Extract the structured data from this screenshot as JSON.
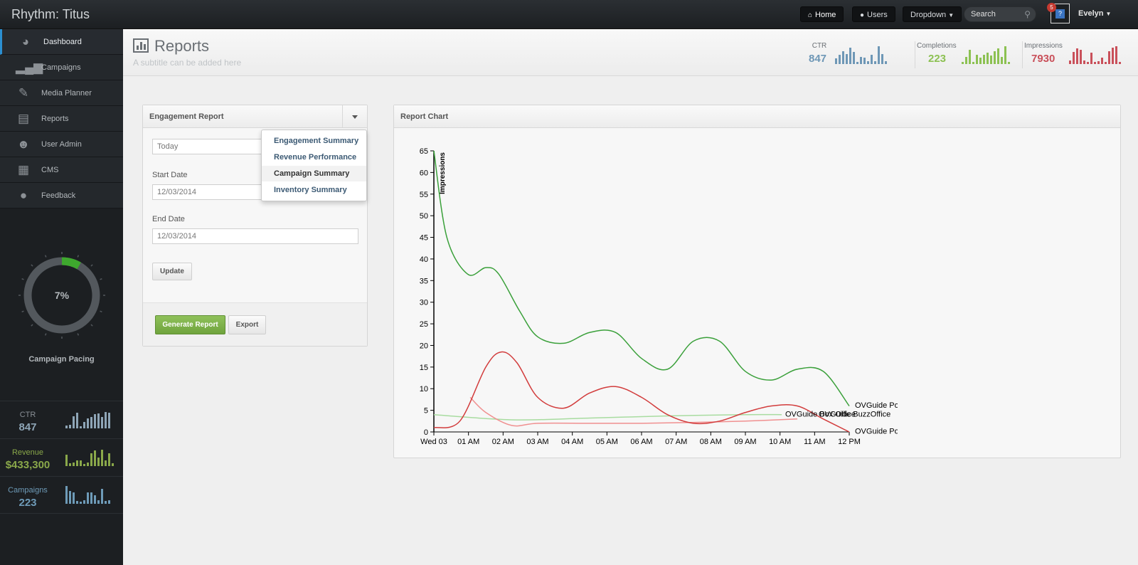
{
  "app": {
    "title": "Rhythm: Titus"
  },
  "topnav": {
    "home": "Home",
    "users": "Users",
    "dropdown": "Dropdown",
    "search_placeholder": "Search",
    "notifications": "5",
    "user": "Evelyn"
  },
  "sidebar": {
    "items": [
      {
        "label": "Dashboard",
        "icon": "dashboard-icon"
      },
      {
        "label": "Campaigns",
        "icon": "signal-icon"
      },
      {
        "label": "Media Planner",
        "icon": "edit-icon"
      },
      {
        "label": "Reports",
        "icon": "bar-chart-icon"
      },
      {
        "label": "User Admin",
        "icon": "user-icon"
      },
      {
        "label": "CMS",
        "icon": "table-icon"
      },
      {
        "label": "Feedback",
        "icon": "comment-icon"
      }
    ],
    "gauge": {
      "value": "7%",
      "fraction": 0.07,
      "label": "Campaign Pacing"
    },
    "stats": [
      {
        "label": "CTR",
        "value": "847",
        "color": "#8ea5b6",
        "bars": [
          0.15,
          0.2,
          0.65,
          0.85,
          0.1,
          0.35,
          0.55,
          0.6,
          0.75,
          0.8,
          0.6,
          0.9,
          0.85
        ]
      },
      {
        "label": "Revenue",
        "value": "$433,300",
        "color": "#8aa84a",
        "bars": [
          0.6,
          0.15,
          0.2,
          0.3,
          0.3,
          0.1,
          0.2,
          0.7,
          0.85,
          0.45,
          0.9,
          0.3,
          0.7,
          0.15
        ]
      },
      {
        "label": "Campaigns",
        "value": "223",
        "color": "#6e9bb8",
        "bars": [
          0.95,
          0.7,
          0.6,
          0.15,
          0.1,
          0.2,
          0.6,
          0.6,
          0.45,
          0.2,
          0.8,
          0.15,
          0.2
        ]
      }
    ]
  },
  "header": {
    "title": "Reports",
    "subtitle": "A subtitle can be added here",
    "stats": [
      {
        "label": "CTR",
        "value": "847",
        "color": "#6e97b6",
        "bars": [
          0.3,
          0.5,
          0.7,
          0.55,
          0.9,
          0.65,
          0.1,
          0.4,
          0.35,
          0.15,
          0.5,
          0.15,
          0.95,
          0.55,
          0.15
        ]
      },
      {
        "label": "Completions",
        "value": "223",
        "color": "#8cc152",
        "bars": [
          0.1,
          0.4,
          0.75,
          0.1,
          0.5,
          0.35,
          0.5,
          0.6,
          0.45,
          0.7,
          0.85,
          0.4,
          0.95,
          0.1
        ]
      },
      {
        "label": "Impressions",
        "value": "7930",
        "color": "#c9505a",
        "bars": [
          0.2,
          0.65,
          0.85,
          0.75,
          0.2,
          0.1,
          0.6,
          0.1,
          0.15,
          0.35,
          0.1,
          0.7,
          0.9,
          0.95,
          0.1
        ]
      }
    ]
  },
  "engagement": {
    "title": "Engagement Report",
    "range": "Today",
    "start_label": "Start Date",
    "start_value": "12/03/2014",
    "end_label": "End Date",
    "end_value": "12/03/2014",
    "update": "Update",
    "generate": "Generate Report",
    "export": "Export",
    "menu": [
      "Engagement Summary",
      "Revenue Performance",
      "Campaign Summary",
      "Inventory Summary"
    ]
  },
  "chart_data": {
    "title": "Report Chart",
    "type": "line",
    "ylabel": "Impressions",
    "xlabel": "",
    "ylim": [
      0,
      65
    ],
    "yticks": [
      0,
      5,
      10,
      15,
      20,
      25,
      30,
      35,
      40,
      45,
      50,
      55,
      60,
      65
    ],
    "categories": [
      "Wed 03",
      "01 AM",
      "02 AM",
      "03 AM",
      "04 AM",
      "05 AM",
      "06 AM",
      "07 AM",
      "08 AM",
      "09 AM",
      "10 AM",
      "11 AM",
      "12 PM"
    ],
    "grid": false,
    "series": [
      {
        "name": "OVGuide Pop",
        "color": "#3aa03a",
        "points": [
          [
            0,
            65
          ],
          [
            0.25,
            45
          ],
          [
            0.65,
            36.5
          ],
          [
            1,
            38
          ],
          [
            1.25,
            36.5
          ],
          [
            1.65,
            28
          ],
          [
            2,
            22
          ],
          [
            2.5,
            20.5
          ],
          [
            3,
            23
          ],
          [
            3.5,
            23
          ],
          [
            4,
            17
          ],
          [
            4.5,
            14.5
          ],
          [
            5,
            21
          ],
          [
            5.5,
            21
          ],
          [
            6,
            14
          ],
          [
            6.5,
            12
          ],
          [
            7,
            14.5
          ],
          [
            7.5,
            14
          ],
          [
            8,
            6
          ]
        ]
      },
      {
        "name": "OVGuide Pop",
        "color": "#d23c3c",
        "points": [
          [
            0,
            1
          ],
          [
            0.5,
            2.5
          ],
          [
            1,
            15
          ],
          [
            1.3,
            18.5
          ],
          [
            1.6,
            16
          ],
          [
            2,
            8
          ],
          [
            2.5,
            5.5
          ],
          [
            3,
            9
          ],
          [
            3.5,
            10.5
          ],
          [
            4,
            8
          ],
          [
            4.5,
            4
          ],
          [
            5,
            2
          ],
          [
            5.5,
            2.5
          ],
          [
            6,
            4.5
          ],
          [
            6.5,
            6
          ],
          [
            7,
            6
          ],
          [
            7.5,
            3
          ],
          [
            8,
            0
          ]
        ]
      },
      {
        "name": "OVGuide BuzzOffice",
        "color": "#f09090",
        "points": [
          [
            0.7,
            8
          ],
          [
            1,
            4.5
          ],
          [
            1.5,
            1.5
          ],
          [
            2,
            2
          ],
          [
            3,
            2
          ],
          [
            4,
            2
          ],
          [
            5,
            2.2
          ],
          [
            6,
            2.5
          ],
          [
            7,
            3
          ]
        ]
      },
      {
        "name": "OVGuide Box Office",
        "color": "#a8dca0",
        "points": [
          [
            0,
            4
          ],
          [
            1.5,
            2.8
          ],
          [
            3,
            3.2
          ],
          [
            4.5,
            3.7
          ],
          [
            6,
            4
          ],
          [
            6.7,
            4
          ]
        ]
      }
    ],
    "legend": [
      "OVGuide Pop",
      "OVGuide BuzzOffice",
      "OVGuide Box Office",
      "OVGuide Pop"
    ]
  }
}
